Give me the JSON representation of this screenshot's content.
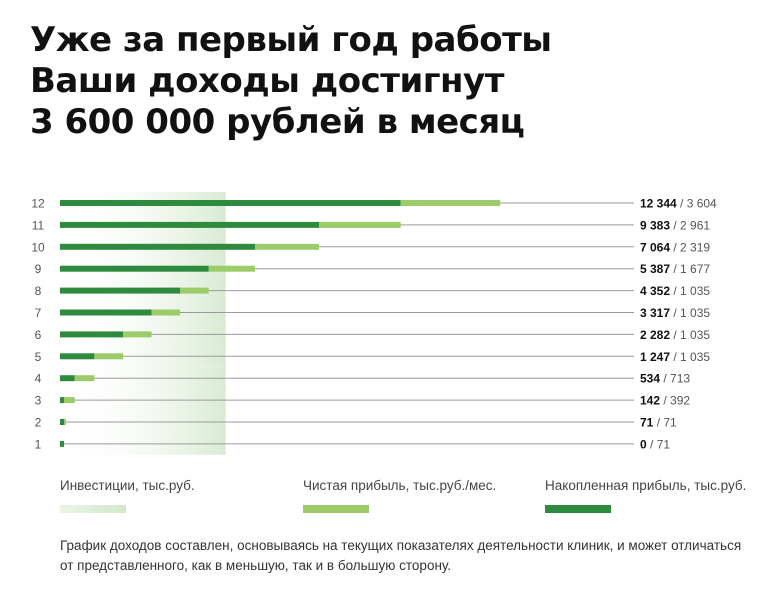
{
  "headline": {
    "line1": "Уже за первый год работы",
    "line2": "Ваши доходы достигнут",
    "line3": "3 600 000 рублей в месяц"
  },
  "chart_data": {
    "type": "bar",
    "orientation": "horizontal",
    "grid": true,
    "xlim": [
      0,
      13500
    ],
    "categories": [
      "1",
      "2",
      "3",
      "4",
      "5",
      "6",
      "7",
      "8",
      "9",
      "10",
      "11",
      "12"
    ],
    "series": [
      {
        "name": "Инвестиции, тыс.руб.",
        "color": "#d9ead3",
        "values": [
          6000,
          6000,
          6000,
          6000,
          6000,
          6000,
          6000,
          6000,
          6000,
          6000,
          6000,
          6000
        ]
      },
      {
        "name": "Чистая прибыль, тыс.руб./мес.",
        "color": "#9ccc6a",
        "values": [
          71,
          71,
          392,
          713,
          1035,
          1035,
          1035,
          1035,
          1677,
          2319,
          2961,
          3604
        ]
      },
      {
        "name": "Накопленная прибыль, тыс.руб.",
        "color": "#2e8b3e",
        "values": [
          0,
          71,
          142,
          534,
          1247,
          2282,
          3317,
          4352,
          5387,
          7064,
          9383,
          12344
        ]
      }
    ],
    "value_labels": {
      "accumulated": [
        "0",
        "71",
        "142",
        "534",
        "1 247",
        "2 282",
        "3 317",
        "4 352",
        "5 387",
        "7 064",
        "9 383",
        "12 344"
      ],
      "monthly": [
        "71",
        "71",
        "392",
        "713",
        "1 035",
        "1 035",
        "1 035",
        "1 035",
        "1 677",
        "2 319",
        "2 961",
        "3 604"
      ],
      "separator": " / "
    }
  },
  "legend": {
    "investments": {
      "label": "Инвестиции, тыс.руб.",
      "color": "#d9ead3"
    },
    "net_profit": {
      "label": "Чистая прибыль, тыс.руб./мес.",
      "color": "#9ccc6a"
    },
    "accumulated": {
      "label": "Накопленная прибыль, тыс.руб.",
      "color": "#2e8b3e"
    }
  },
  "footnote": "График доходов составлен, основываясь на текущих показателях деятельности клиник, и может отличаться от представленного, как в меньшую, так и в большую сторону."
}
